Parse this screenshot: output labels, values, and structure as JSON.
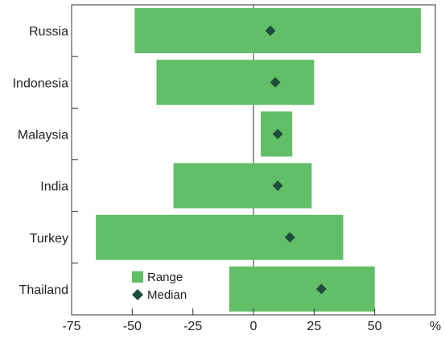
{
  "chart_data": {
    "type": "bar",
    "title": "",
    "xlabel": "",
    "ylabel": "",
    "unit_label": "%",
    "xlim": [
      -75,
      75
    ],
    "x_ticks": [
      -75,
      -50,
      -25,
      0,
      25,
      50
    ],
    "categories": [
      "Russia",
      "Indonesia",
      "Malaysia",
      "India",
      "Turkey",
      "Thailand"
    ],
    "range_min": [
      -49,
      -40,
      3,
      -33,
      -65,
      -10
    ],
    "range_max": [
      69,
      25,
      16,
      24,
      37,
      50
    ],
    "median": [
      7,
      9,
      10,
      10,
      15,
      28
    ],
    "legend": {
      "placement": "bottom-left",
      "items": [
        {
          "label": "Range",
          "color": "#62BE67",
          "shape": "square"
        },
        {
          "label": "Median",
          "color": "#1D4E3C",
          "shape": "diamond"
        }
      ]
    },
    "colors": {
      "range": "#62BE67",
      "median": "#1D4E3C"
    },
    "grid": false
  }
}
